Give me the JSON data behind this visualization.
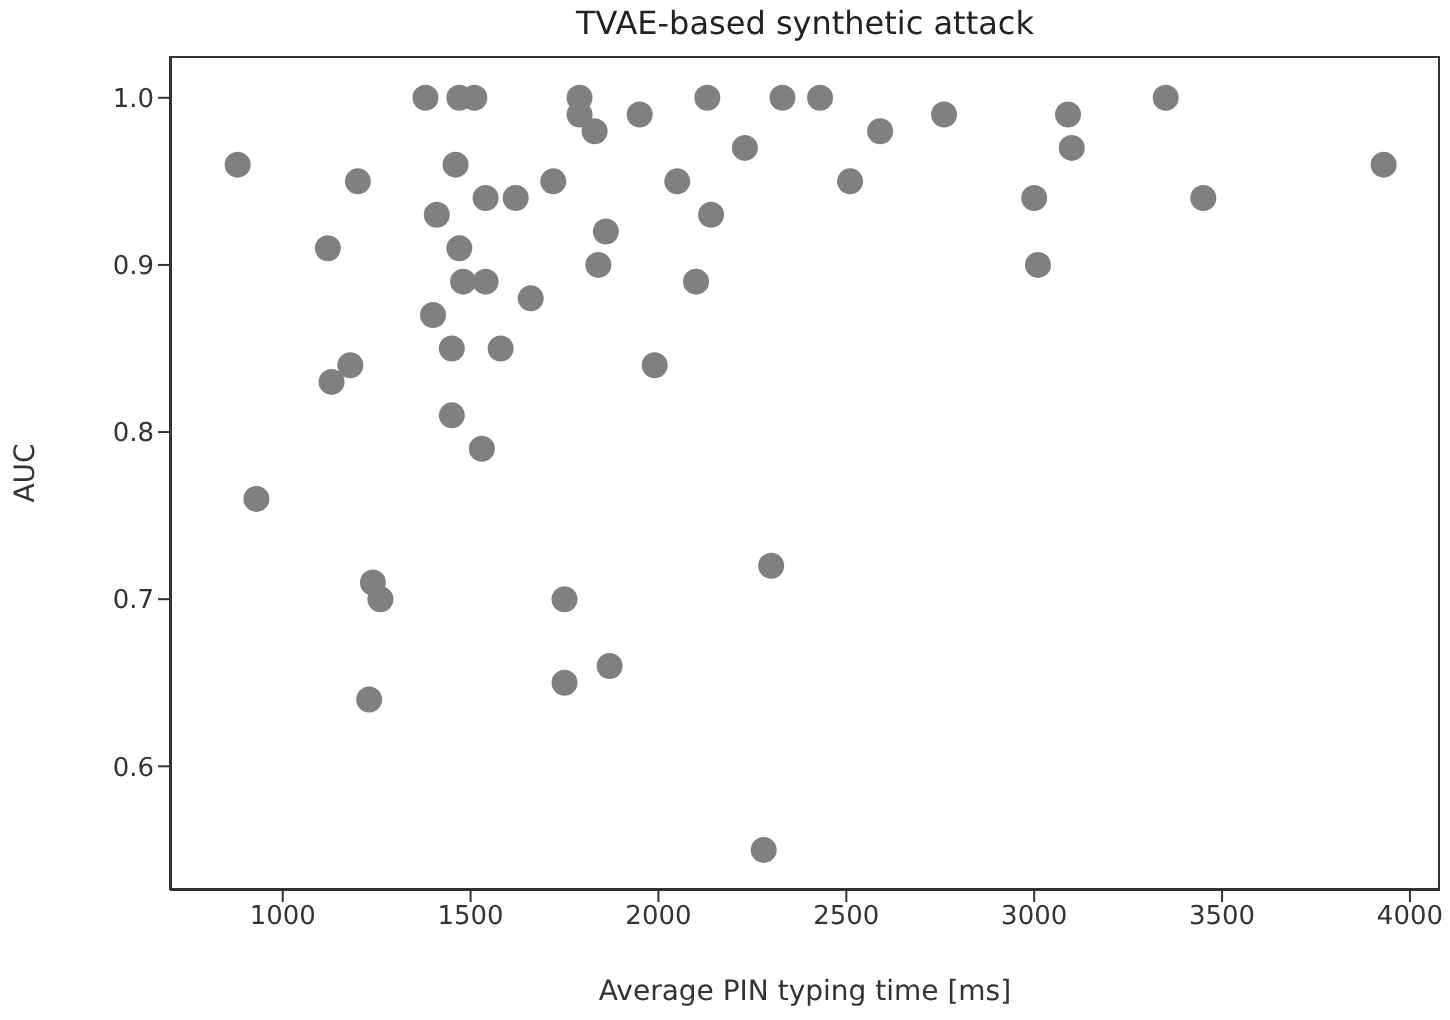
{
  "chart_data": {
    "type": "scatter",
    "title": "TVAE-based synthetic attack",
    "xlabel": "Average PIN typing time [ms]",
    "ylabel": "AUC",
    "xlim": [
      700,
      4080
    ],
    "xticks": [
      1000,
      1500,
      2000,
      2500,
      3000,
      3500,
      4000
    ],
    "ylim": [
      0.526,
      1.025
    ],
    "yticks": [
      {
        "value": 0.6,
        "label": "0.6"
      },
      {
        "value": 0.7,
        "label": "0.7"
      },
      {
        "value": 0.8,
        "label": "0.8"
      },
      {
        "value": 0.9,
        "label": "0.9"
      },
      {
        "value": 1.0,
        "label": "1.0"
      }
    ],
    "marker": "circle",
    "grid": false,
    "legend": false,
    "x": [
      880,
      930,
      1120,
      1130,
      1180,
      1200,
      1230,
      1240,
      1260,
      1380,
      1400,
      1410,
      1450,
      1450,
      1460,
      1470,
      1470,
      1480,
      1510,
      1530,
      1540,
      1540,
      1580,
      1620,
      1660,
      1720,
      1750,
      1750,
      1790,
      1790,
      1830,
      1840,
      1860,
      1870,
      1950,
      1990,
      2050,
      2100,
      2130,
      2140,
      2230,
      2280,
      2300,
      2330,
      2430,
      2510,
      2590,
      2760,
      3000,
      3010,
      3090,
      3100,
      3350,
      3450,
      3930
    ],
    "series": [
      {
        "color": "#808080",
        "values": [
          0.96,
          0.76,
          0.91,
          0.83,
          0.84,
          0.95,
          0.64,
          0.71,
          0.7,
          1.0,
          0.87,
          0.93,
          0.85,
          0.81,
          0.96,
          0.91,
          1.0,
          0.89,
          1.0,
          0.79,
          0.94,
          0.89,
          0.85,
          0.94,
          0.88,
          0.95,
          0.7,
          0.65,
          1.0,
          0.99,
          0.98,
          0.9,
          0.92,
          0.66,
          0.99,
          0.84,
          0.95,
          0.89,
          1.0,
          0.93,
          0.97,
          0.55,
          0.72,
          1.0,
          1.0,
          0.95,
          0.98,
          0.99,
          0.94,
          0.9,
          0.99,
          0.97,
          1.0,
          0.94,
          0.96
        ]
      }
    ]
  }
}
